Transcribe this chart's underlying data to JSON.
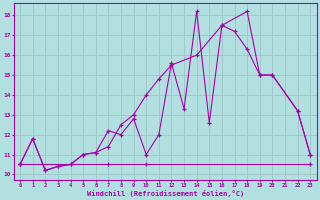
{
  "xlabel": "Windchill (Refroidissement éolien,°C)",
  "ylabel": "",
  "bg_color": "#b2e0e0",
  "grid_color": "#a0c8c8",
  "line_color": "#aa00aa",
  "xlim": [
    -0.5,
    23.5
  ],
  "ylim": [
    9.7,
    18.6
  ],
  "xticks": [
    0,
    1,
    2,
    3,
    4,
    5,
    6,
    7,
    8,
    9,
    10,
    11,
    12,
    13,
    14,
    15,
    16,
    17,
    18,
    19,
    20,
    21,
    22,
    23
  ],
  "yticks": [
    10,
    11,
    12,
    13,
    14,
    15,
    16,
    17,
    18
  ],
  "series": [
    {
      "x": [
        0,
        1,
        2,
        3,
        4,
        5,
        6,
        7,
        8,
        9,
        10,
        11,
        12,
        13,
        14,
        15,
        16,
        17,
        18,
        19,
        20,
        22,
        23
      ],
      "y": [
        10.5,
        11.8,
        10.2,
        10.4,
        10.5,
        11.0,
        11.1,
        12.2,
        12.0,
        12.8,
        11.0,
        12.0,
        15.6,
        13.3,
        18.2,
        12.6,
        17.5,
        17.2,
        16.3,
        15.0,
        15.0,
        13.2,
        11.0
      ]
    },
    {
      "x": [
        0,
        1,
        2,
        3,
        4,
        5,
        6,
        7,
        8,
        9,
        10,
        11,
        12,
        14,
        16,
        18,
        19,
        20,
        22,
        23
      ],
      "y": [
        10.5,
        11.8,
        10.2,
        10.4,
        10.5,
        11.0,
        11.1,
        11.4,
        12.5,
        13.0,
        14.0,
        14.8,
        15.5,
        16.0,
        17.5,
        18.2,
        15.0,
        15.0,
        13.2,
        11.0
      ]
    },
    {
      "x": [
        0,
        7,
        10,
        23
      ],
      "y": [
        10.5,
        10.5,
        10.5,
        10.5
      ]
    }
  ]
}
